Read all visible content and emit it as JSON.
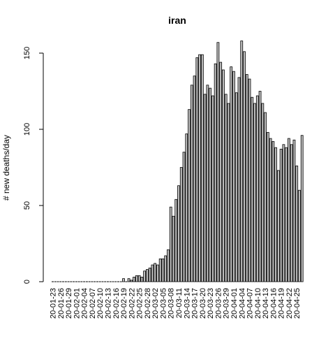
{
  "chart_data": {
    "type": "bar",
    "title": "iran",
    "xlabel": "",
    "ylabel": "# new deaths/day",
    "ylim": [
      0,
      160
    ],
    "yticks": [
      0,
      50,
      100,
      150
    ],
    "grid": false,
    "legend": "none",
    "bar_fill": "#bebebe",
    "bar_stroke": "#000000",
    "x_tick_labels": [
      "20-01-23",
      "20-01-26",
      "20-01-29",
      "20-02-01",
      "20-02-04",
      "20-02-07",
      "20-02-10",
      "20-02-13",
      "20-02-16",
      "20-02-19",
      "20-02-22",
      "20-02-25",
      "20-02-28",
      "20-03-02",
      "20-03-05",
      "20-03-08",
      "20-03-11",
      "20-03-14",
      "20-03-17",
      "20-03-20",
      "20-03-23",
      "20-03-26",
      "20-03-29",
      "20-04-01",
      "20-04-04",
      "20-04-07",
      "20-04-10",
      "20-04-13",
      "20-04-16",
      "20-04-19",
      "20-04-22",
      "20-04-25"
    ],
    "categories": [
      "20-01-23",
      "20-01-24",
      "20-01-25",
      "20-01-26",
      "20-01-27",
      "20-01-28",
      "20-01-29",
      "20-01-30",
      "20-01-31",
      "20-02-01",
      "20-02-02",
      "20-02-03",
      "20-02-04",
      "20-02-05",
      "20-02-06",
      "20-02-07",
      "20-02-08",
      "20-02-09",
      "20-02-10",
      "20-02-11",
      "20-02-12",
      "20-02-13",
      "20-02-14",
      "20-02-15",
      "20-02-16",
      "20-02-17",
      "20-02-18",
      "20-02-19",
      "20-02-20",
      "20-02-21",
      "20-02-22",
      "20-02-23",
      "20-02-24",
      "20-02-25",
      "20-02-26",
      "20-02-27",
      "20-02-28",
      "20-02-29",
      "20-03-01",
      "20-03-02",
      "20-03-03",
      "20-03-04",
      "20-03-05",
      "20-03-06",
      "20-03-07",
      "20-03-08",
      "20-03-09",
      "20-03-10",
      "20-03-11",
      "20-03-12",
      "20-03-13",
      "20-03-14",
      "20-03-15",
      "20-03-16",
      "20-03-17",
      "20-03-18",
      "20-03-19",
      "20-03-20",
      "20-03-21",
      "20-03-22",
      "20-03-23",
      "20-03-24",
      "20-03-25",
      "20-03-26",
      "20-03-27",
      "20-03-28",
      "20-03-29",
      "20-03-30",
      "20-03-31",
      "20-04-01",
      "20-04-02",
      "20-04-03",
      "20-04-04",
      "20-04-05",
      "20-04-06",
      "20-04-07",
      "20-04-08",
      "20-04-09",
      "20-04-10",
      "20-04-11",
      "20-04-12",
      "20-04-13",
      "20-04-14",
      "20-04-15",
      "20-04-16",
      "20-04-17",
      "20-04-18",
      "20-04-19",
      "20-04-20",
      "20-04-21",
      "20-04-22",
      "20-04-23",
      "20-04-24",
      "20-04-25",
      "20-04-26",
      "20-04-27"
    ],
    "values": [
      0,
      0,
      0,
      0,
      0,
      0,
      0,
      0,
      0,
      0,
      0,
      0,
      0,
      0,
      0,
      0,
      0,
      0,
      0,
      0,
      0,
      0,
      0,
      0,
      0,
      0,
      0,
      2,
      0,
      2,
      1,
      3,
      4,
      4,
      3,
      7,
      8,
      9,
      11,
      12,
      11,
      15,
      15,
      17,
      21,
      49,
      43,
      54,
      63,
      75,
      85,
      97,
      113,
      129,
      135,
      147,
      149,
      149,
      123,
      129,
      127,
      122,
      143,
      157,
      144,
      139,
      123,
      117,
      141,
      138,
      124,
      134,
      158,
      151,
      136,
      133,
      121,
      117,
      122,
      125,
      117,
      111,
      98,
      94,
      92,
      88,
      73,
      87,
      90,
      88,
      94,
      90,
      93,
      76,
      60,
      96
    ]
  }
}
